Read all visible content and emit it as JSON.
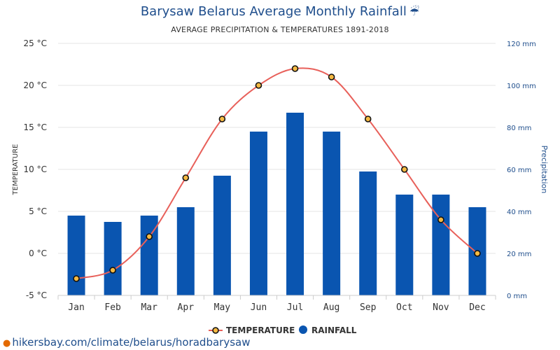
{
  "chart_data": {
    "type": "bar+line",
    "title": "Barysaw Belarus Average Monthly Rainfall",
    "title_icon": "umbrella-rain-icon",
    "subtitle": "AVERAGE PRECIPITATION & TEMPERATURES 1891-2018",
    "categories": [
      "Jan",
      "Feb",
      "Mar",
      "Apr",
      "May",
      "Jun",
      "Jul",
      "Aug",
      "Sep",
      "Oct",
      "Nov",
      "Dec"
    ],
    "left_axis": {
      "label": "TEMPERATURE",
      "min": -5,
      "max": 25,
      "ticks": [
        25,
        20,
        15,
        10,
        5,
        0,
        -5
      ],
      "tick_labels": [
        "25 °C",
        "20 °C",
        "15 °C",
        "10 °C",
        "5 °C",
        "0 °C",
        "-5 °C"
      ]
    },
    "right_axis": {
      "label": "Precipitation",
      "min": 0,
      "max": 120,
      "ticks": [
        120,
        100,
        80,
        60,
        40,
        20,
        0
      ],
      "tick_labels": [
        "120 mm",
        "100 mm",
        "80 mm",
        "60 mm",
        "40 mm",
        "20 mm",
        "0 mm"
      ]
    },
    "series": [
      {
        "name": "TEMPERATURE",
        "kind": "line",
        "axis": "left",
        "color": "#e8605a",
        "marker_fill": "#f5b942",
        "values": [
          -3,
          -2,
          2,
          9,
          16,
          20,
          22,
          21,
          16,
          10,
          4,
          0
        ]
      },
      {
        "name": "RAINFALL",
        "kind": "bar",
        "axis": "right",
        "color": "#0a55b0",
        "values": [
          38,
          35,
          38,
          42,
          57,
          78,
          87,
          78,
          59,
          48,
          48,
          42
        ]
      }
    ],
    "grid": true,
    "legend_position": "bottom-center"
  },
  "footer": {
    "pin_icon": "location-pin-icon",
    "url": "hikersbay.com/climate/belarus/horadbarysaw"
  }
}
